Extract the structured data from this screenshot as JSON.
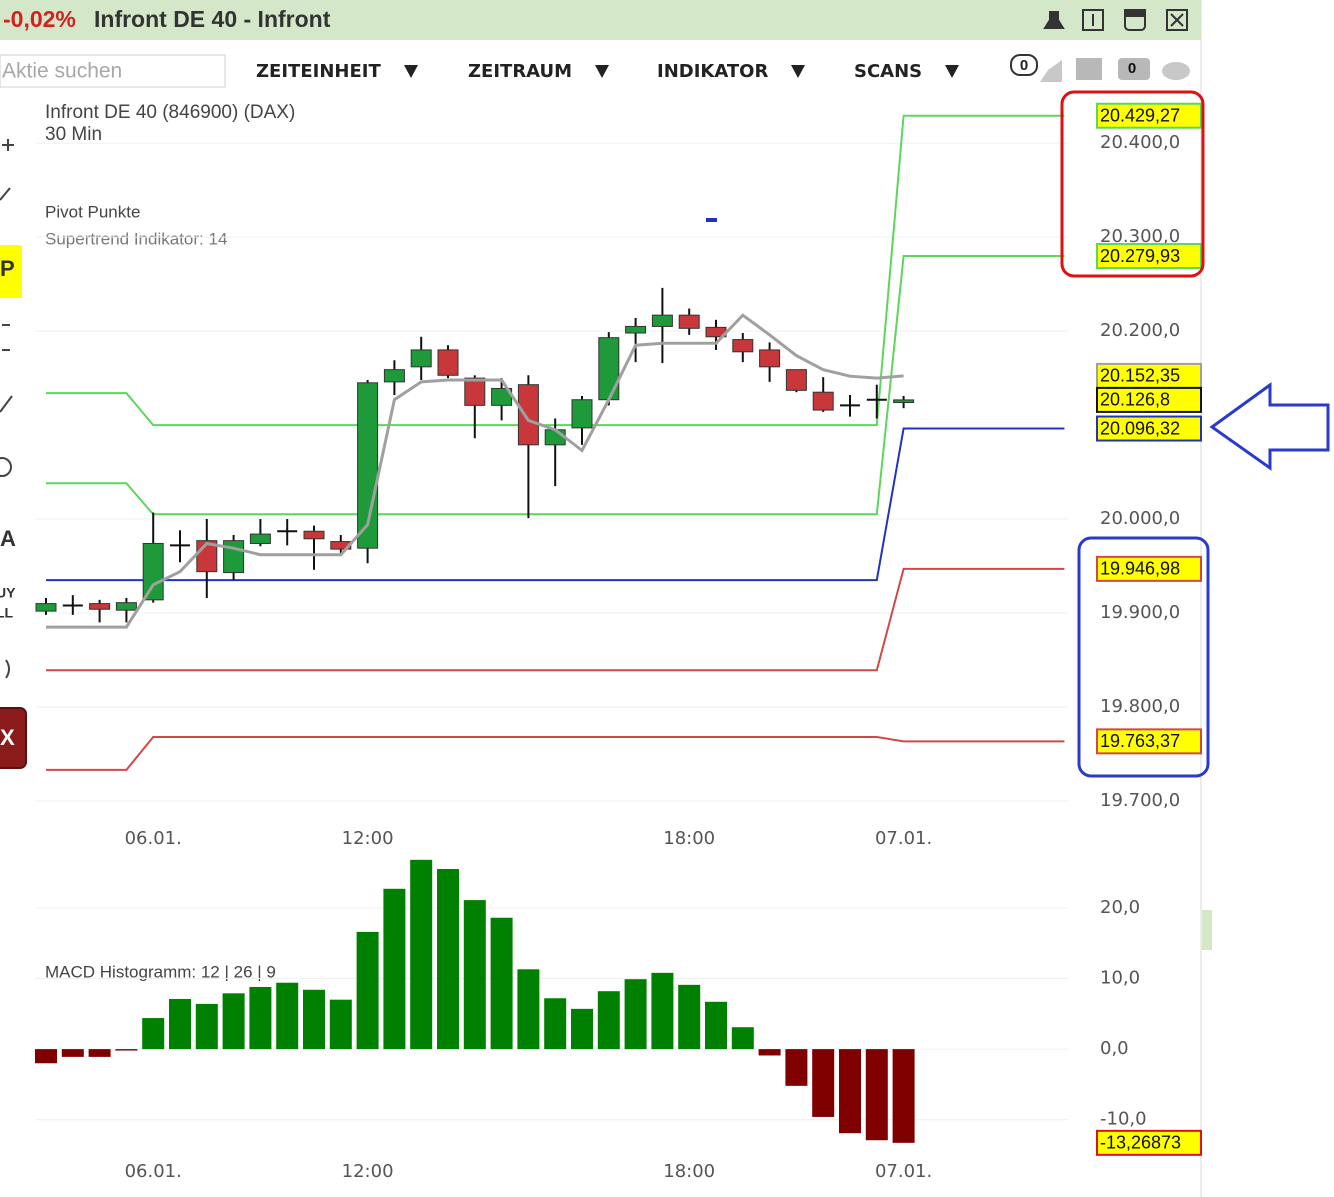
{
  "header": {
    "change": "-0,02%",
    "title": "Infront DE 40 - Infront"
  },
  "toolbar": {
    "search_placeholder": "Aktie suchen",
    "menus": [
      "ZEITEINHEIT",
      "ZEITRAUM",
      "INDIKATOR",
      "SCANS"
    ],
    "badges": [
      "0",
      "0"
    ]
  },
  "sidebar": {
    "labels": [
      "P",
      "A",
      "UY",
      "LL",
      "X"
    ]
  },
  "chart_data": [
    {
      "type": "candlestick",
      "title": "Infront DE 40 (846900) (DAX)",
      "subtitle": "30 Min",
      "legend_title": "Pivot Punkte",
      "categories": [
        null,
        null,
        null,
        null,
        "06.01.",
        null,
        null,
        null,
        null,
        null,
        null,
        null,
        "12:00",
        null,
        null,
        null,
        null,
        null,
        null,
        null,
        null,
        null,
        null,
        null,
        "18:00",
        null,
        null,
        null,
        null,
        null,
        null,
        null,
        "07.01.",
        null,
        null,
        null,
        null,
        null,
        null
      ],
      "open": [
        19902,
        19908,
        19910,
        19903,
        19914,
        19972,
        19977,
        19943,
        19974,
        19987,
        19987,
        19976,
        19969,
        20146,
        20162,
        20180,
        20150,
        20121,
        20143,
        20079,
        20097,
        20127,
        20198,
        20205,
        20217,
        20204,
        20191,
        20180,
        20159,
        20135,
        20121,
        20127,
        20124,
        null,
        null,
        null,
        null,
        null,
        null
      ],
      "high": [
        19916,
        19919,
        19914,
        19916,
        20007,
        19988,
        20000,
        19983,
        20000,
        20000,
        19993,
        19983,
        20148,
        20169,
        20194,
        20185,
        20153,
        20150,
        20153,
        20107,
        20131,
        20199,
        20214,
        20246,
        20224,
        20212,
        20198,
        20188,
        20159,
        20151,
        20132,
        20143,
        20131,
        null,
        null,
        null,
        null,
        null,
        null
      ],
      "low": [
        19898,
        19898,
        19890,
        19890,
        19911,
        19954,
        19916,
        19935,
        19971,
        19972,
        19946,
        19962,
        19953,
        20132,
        20148,
        20150,
        20086,
        20105,
        20001,
        20035,
        20079,
        20121,
        20167,
        20166,
        20196,
        20180,
        20167,
        20146,
        20135,
        20114,
        20109,
        20107,
        20118,
        null,
        null,
        null,
        null,
        null,
        null
      ],
      "close": [
        19910,
        19908,
        19904,
        19911,
        19974,
        19972,
        19944,
        19977,
        19984,
        19987,
        19979,
        19968,
        20145,
        20159,
        20180,
        20153,
        20121,
        20139,
        20079,
        20095,
        20127,
        20193,
        20205,
        20217,
        20203,
        20194,
        20178,
        20162,
        20137,
        20116,
        20121,
        20127,
        20126.8,
        null,
        null,
        null,
        null,
        null,
        null
      ],
      "value_labels": [
        null,
        null,
        null,
        null,
        null,
        null,
        null,
        null,
        null,
        null,
        null,
        null,
        null,
        null,
        null,
        null,
        null,
        null,
        null,
        null,
        null,
        null,
        null,
        null,
        null,
        null,
        null,
        null,
        null,
        null,
        null,
        null,
        "20.126,8",
        null,
        null,
        null,
        null,
        null,
        null
      ],
      "up_color": "#1f9a3a",
      "down_color": "#c8383a",
      "series": [
        {
          "color": "#5cd65c",
          "values": [
            20134,
            20134,
            20134,
            20134,
            20100,
            20100,
            20100,
            20100,
            20100,
            20100,
            20100,
            20100,
            20100,
            20100,
            20100,
            20100,
            20100,
            20100,
            20100,
            20100,
            20100,
            20100,
            20100,
            20100,
            20100,
            20100,
            20100,
            20100,
            20100,
            20100,
            20100,
            20100,
            20429.27,
            20429.27,
            20429.27,
            20429.27,
            20429.27,
            20429.27,
            20429.27
          ],
          "value_labels": [
            null,
            null,
            null,
            null,
            null,
            null,
            null,
            null,
            null,
            null,
            null,
            null,
            null,
            null,
            null,
            null,
            null,
            null,
            null,
            null,
            null,
            null,
            null,
            null,
            null,
            null,
            null,
            null,
            null,
            null,
            null,
            null,
            null,
            null,
            null,
            null,
            null,
            null,
            "20.429,27"
          ]
        },
        {
          "color": "#5cd65c",
          "values": [
            20038,
            20038,
            20038,
            20038,
            20005,
            20005,
            20005,
            20005,
            20005,
            20005,
            20005,
            20005,
            20005,
            20005,
            20005,
            20005,
            20005,
            20005,
            20005,
            20005,
            20005,
            20005,
            20005,
            20005,
            20005,
            20005,
            20005,
            20005,
            20005,
            20005,
            20005,
            20005,
            20279.93,
            20279.93,
            20279.93,
            20279.93,
            20279.93,
            20279.93,
            20279.93
          ],
          "value_labels": [
            null,
            null,
            null,
            null,
            null,
            null,
            null,
            null,
            null,
            null,
            null,
            null,
            null,
            null,
            null,
            null,
            null,
            null,
            null,
            null,
            null,
            null,
            null,
            null,
            null,
            null,
            null,
            null,
            null,
            null,
            null,
            null,
            null,
            null,
            null,
            null,
            null,
            null,
            "20.279,93"
          ]
        },
        {
          "color": "#2233bb",
          "values": [
            19935,
            19935,
            19935,
            19935,
            19935,
            19935,
            19935,
            19935,
            19935,
            19935,
            19935,
            19935,
            19935,
            19935,
            19935,
            19935,
            19935,
            19935,
            19935,
            19935,
            19935,
            19935,
            19935,
            19935,
            19935,
            19935,
            19935,
            19935,
            19935,
            19935,
            19935,
            19935,
            20096.32,
            20096.32,
            20096.32,
            20096.32,
            20096.32,
            20096.32,
            20096.32
          ],
          "value_labels": [
            null,
            null,
            null,
            null,
            null,
            null,
            null,
            null,
            null,
            null,
            null,
            null,
            null,
            null,
            null,
            null,
            null,
            null,
            null,
            null,
            null,
            null,
            null,
            null,
            null,
            null,
            null,
            null,
            null,
            null,
            null,
            null,
            null,
            null,
            null,
            null,
            null,
            null,
            "20.096,32"
          ]
        },
        {
          "color": "#d04848",
          "values": [
            19839,
            19839,
            19839,
            19839,
            19839,
            19839,
            19839,
            19839,
            19839,
            19839,
            19839,
            19839,
            19839,
            19839,
            19839,
            19839,
            19839,
            19839,
            19839,
            19839,
            19839,
            19839,
            19839,
            19839,
            19839,
            19839,
            19839,
            19839,
            19839,
            19839,
            19839,
            19839,
            19946.98,
            19946.98,
            19946.98,
            19946.98,
            19946.98,
            19946.98,
            19946.98
          ],
          "value_labels": [
            null,
            null,
            null,
            null,
            null,
            null,
            null,
            null,
            null,
            null,
            null,
            null,
            null,
            null,
            null,
            null,
            null,
            null,
            null,
            null,
            null,
            null,
            null,
            null,
            null,
            null,
            null,
            null,
            null,
            null,
            null,
            null,
            null,
            null,
            null,
            null,
            null,
            null,
            "19.946,98"
          ]
        },
        {
          "color": "#d04848",
          "values": [
            19733,
            19733,
            19733,
            19733,
            19768,
            19768,
            19768,
            19768,
            19768,
            19768,
            19768,
            19768,
            19768,
            19768,
            19768,
            19768,
            19768,
            19768,
            19768,
            19768,
            19768,
            19768,
            19768,
            19768,
            19768,
            19768,
            19768,
            19768,
            19768,
            19768,
            19768,
            19768,
            19763.37,
            19763.37,
            19763.37,
            19763.37,
            19763.37,
            19763.37,
            19763.37
          ],
          "value_labels": [
            null,
            null,
            null,
            null,
            null,
            null,
            null,
            null,
            null,
            null,
            null,
            null,
            null,
            null,
            null,
            null,
            null,
            null,
            null,
            null,
            null,
            null,
            null,
            null,
            null,
            null,
            null,
            null,
            null,
            null,
            null,
            null,
            null,
            null,
            null,
            null,
            null,
            null,
            "19.763,37"
          ]
        },
        {
          "name": "Supertrend Indikator: 14",
          "color": "#a0a0a0",
          "values": [
            19885,
            19885,
            19885,
            19885,
            19930,
            19944,
            19974,
            19969,
            19962,
            19962,
            19962,
            19962,
            19994,
            20127,
            20146,
            20148,
            20148,
            20148,
            20105,
            20095,
            20073,
            20127,
            20185,
            20187,
            20187,
            20187,
            20217,
            20196,
            20174,
            20159,
            20152,
            20150,
            20152.35,
            null,
            null,
            null,
            null,
            null,
            null
          ],
          "value_labels": [
            null,
            null,
            null,
            null,
            null,
            null,
            null,
            null,
            null,
            null,
            null,
            null,
            null,
            null,
            null,
            null,
            null,
            null,
            null,
            null,
            null,
            null,
            null,
            null,
            null,
            null,
            null,
            null,
            null,
            null,
            null,
            null,
            "20.152,35",
            null,
            null,
            null,
            null,
            null,
            null
          ]
        }
      ],
      "ylim": [
        19685,
        20446
      ],
      "yticks": [
        {
          "value": 19700,
          "label": "19.700,0"
        },
        {
          "value": 19800,
          "label": "19.800,0"
        },
        {
          "value": 19900,
          "label": "19.900,0"
        },
        {
          "value": 20000,
          "label": "20.000,0"
        },
        {
          "value": 20200,
          "label": "20.200,0"
        },
        {
          "value": 20300,
          "label": "20.300,0"
        },
        {
          "value": 20400,
          "label": "20.400,0"
        }
      ],
      "grid": true
    },
    {
      "type": "bar",
      "title": "MACD Histogramm: 12 | 26 | 9",
      "categories": [
        null,
        null,
        null,
        null,
        "06.01.",
        null,
        null,
        null,
        null,
        null,
        null,
        null,
        "12:00",
        null,
        null,
        null,
        null,
        null,
        null,
        null,
        null,
        null,
        null,
        null,
        "18:00",
        null,
        null,
        null,
        null,
        null,
        null,
        null,
        "07.01.",
        null,
        null,
        null,
        null,
        null,
        null
      ],
      "values": [
        -2.0,
        -1.1,
        -1.1,
        -0.2,
        4.4,
        7.1,
        6.4,
        7.9,
        8.8,
        9.4,
        8.4,
        7.0,
        16.6,
        22.7,
        26.8,
        25.5,
        21.1,
        18.6,
        11.3,
        7.2,
        5.7,
        8.2,
        9.9,
        10.8,
        9.1,
        6.7,
        3.1,
        -0.9,
        -5.2,
        -9.6,
        -11.9,
        -12.9,
        -13.26873,
        null,
        null,
        null,
        null,
        null,
        null
      ],
      "value_labels": [
        null,
        null,
        null,
        null,
        null,
        null,
        null,
        null,
        null,
        null,
        null,
        null,
        null,
        null,
        null,
        null,
        null,
        null,
        null,
        null,
        null,
        null,
        null,
        null,
        null,
        null,
        null,
        null,
        null,
        null,
        null,
        null,
        "-13,26873",
        null,
        null,
        null,
        null,
        null,
        null
      ],
      "color": "#008000",
      "negative_color": "#800000",
      "ylim": [
        -15.7,
        28.9
      ],
      "yticks": [
        {
          "value": -10,
          "label": "-10,0"
        },
        {
          "value": 0,
          "label": "0,0"
        },
        {
          "value": 10,
          "label": "10,0"
        },
        {
          "value": 20,
          "label": "20,0"
        }
      ],
      "grid": true
    }
  ]
}
